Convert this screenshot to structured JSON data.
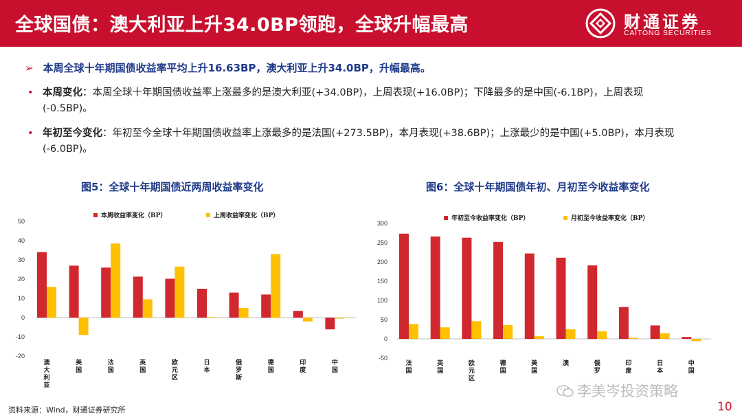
{
  "header": {
    "title": "全球国债：澳大利亚上升34.0BP领跑，全球升幅最高",
    "logo_cn": "财通证券",
    "logo_en": "CAITONG SECURITIES"
  },
  "summary": "本周全球十年期国债收益率平均上升16.63BP，澳大利亚上升34.0BP，升幅最高。",
  "bullets": [
    {
      "label": "本周变化",
      "text": "：本周全球十年期国债收益率上涨最多的是澳大利亚(+34.0BP)，上周表现(+16.0BP)；下降最多的是中国(-6.1BP)，上周表现(-0.5BP)。"
    },
    {
      "label": "年初至今变化",
      "text": "：年初至今全球十年期国债收益率上涨最多的是法国(+273.5BP)，本月表现(+38.6BP)；上涨最少的是中国(+5.0BP)，本月表现(-6.0BP)。"
    }
  ],
  "colors": {
    "brand_red": "#c8102e",
    "bar_red": "#d0282e",
    "bar_yellow": "#ffc000",
    "title_blue": "#1f3a8a"
  },
  "fig5_title": "图5：全球十年期国债近两周收益率变化",
  "fig6_title": "图6：全球十年期国债年初、月初至今收益率变化",
  "chart_data": [
    {
      "type": "bar",
      "categories": [
        "澳大利亚",
        "美国",
        "法国",
        "英国",
        "欧元区",
        "日本",
        "俄罗斯",
        "德国",
        "印度",
        "中国"
      ],
      "series": [
        {
          "name": "本周收益率变化（BP）",
          "values": [
            34.0,
            27.0,
            26.0,
            21.3,
            20.2,
            15.0,
            13.0,
            12.0,
            3.5,
            -6.1
          ]
        },
        {
          "name": "上周收益率变化（BP）",
          "values": [
            16.0,
            -9.0,
            38.5,
            9.5,
            26.5,
            0.3,
            5.0,
            33.0,
            -2.0,
            -0.5
          ]
        }
      ],
      "ylim": [
        -20,
        50
      ],
      "yticks": [
        "50",
        "40",
        "30",
        "20",
        "10",
        "0",
        "-10",
        "-20"
      ],
      "legend": "top"
    },
    {
      "type": "bar",
      "categories": [
        "法国",
        "英国",
        "欧元区",
        "德国",
        "美国",
        "澳大利亚",
        "俄罗斯",
        "印度",
        "日本",
        "中国"
      ],
      "tick_labels": [
        "法国",
        "英国",
        "欧元区",
        "德国",
        "美国",
        "澳",
        "俄罗",
        "印度",
        "日本",
        "中国"
      ],
      "series": [
        {
          "name": "年初至今收益率变化（BP）",
          "values": [
            273.5,
            266,
            263,
            252,
            222,
            211,
            191,
            83,
            35,
            5.0
          ]
        },
        {
          "name": "月初至今收益率变化（BP）",
          "values": [
            38.6,
            30,
            46,
            36,
            7,
            25,
            20,
            3,
            15,
            -6.0
          ]
        }
      ],
      "ylim": [
        -50,
        300
      ],
      "yticks": [
        "300",
        "250",
        "200",
        "150",
        "100",
        "50",
        "0",
        "-50"
      ],
      "legend": "top"
    }
  ],
  "source": "资料来源：Wind，财通证券研究所",
  "watermark": "李美岑投资策略",
  "page_number": "10"
}
